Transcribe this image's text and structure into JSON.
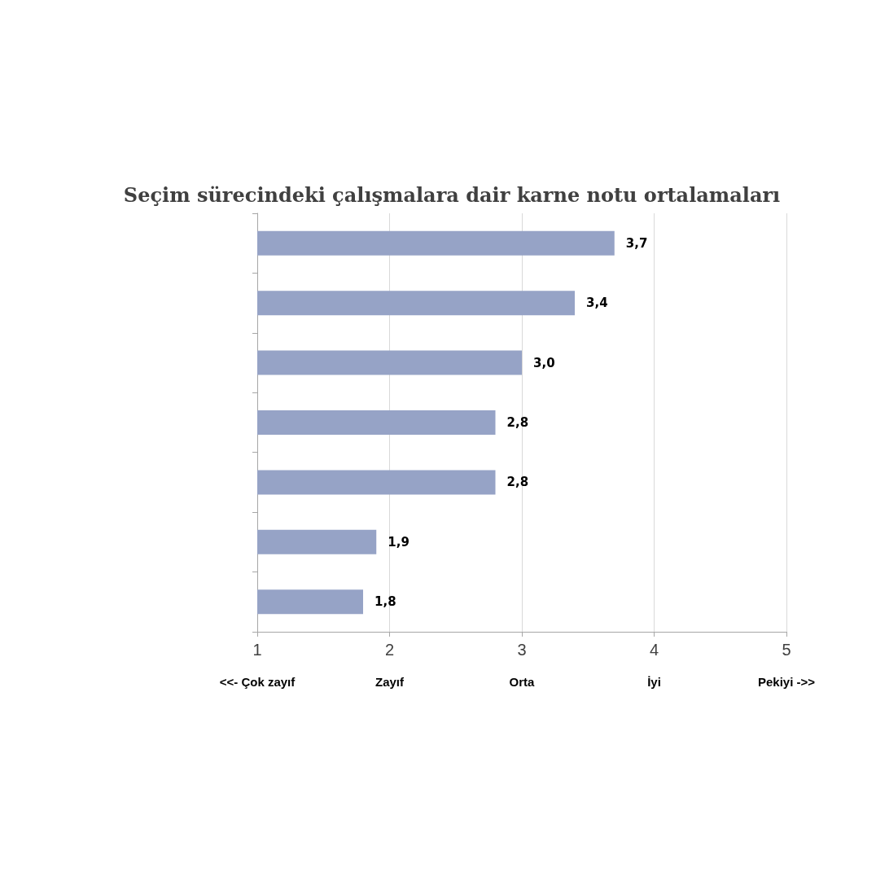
{
  "chart_data": {
    "type": "bar",
    "orientation": "horizontal",
    "title": "Seçim sürecindeki çalışmalara dair karne notu ortalamaları",
    "categories": [
      null,
      null,
      null,
      null,
      null,
      null,
      null
    ],
    "values": [
      3.7,
      3.4,
      3.0,
      2.8,
      2.8,
      1.9,
      1.8
    ],
    "value_labels": [
      "3,7",
      "3,4",
      "3,0",
      "2,8",
      "2,8",
      "1,9",
      "1,8"
    ],
    "color": "#96a3c6",
    "xlim": [
      1,
      5
    ],
    "xticks": [
      1,
      2,
      3,
      4,
      5
    ],
    "annotations": [
      "<<- Çok zayıf",
      "Zayıf",
      "Orta",
      "İyi",
      "Pekiyi ->>"
    ],
    "grid": "x"
  }
}
